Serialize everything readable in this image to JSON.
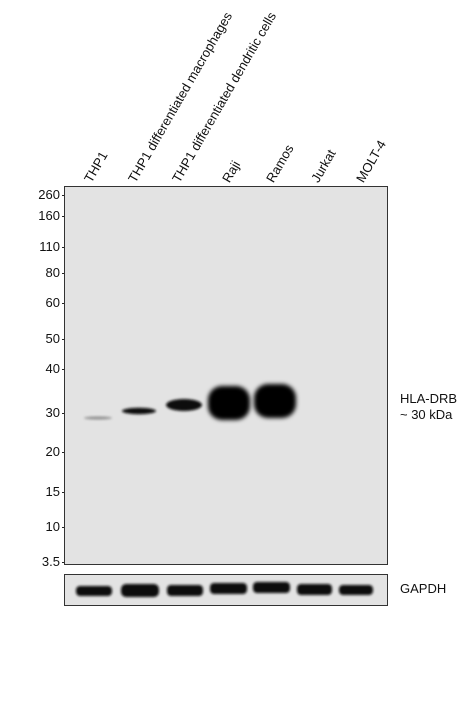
{
  "lanes": [
    "THP1",
    "THP1 differentiated macrophages",
    "THP1 differentiated dendritic cells",
    "Raji",
    "Ramos",
    "Jurkat",
    "MOLT-4"
  ],
  "mw_markers": [
    "260",
    "160",
    "110",
    "80",
    "60",
    "50",
    "40",
    "30",
    "20",
    "15",
    "10",
    "3.5"
  ],
  "target_label_line1": "HLA-DRB",
  "target_label_line2": "~ 30 kDa",
  "loading_control_label": "GAPDH"
}
